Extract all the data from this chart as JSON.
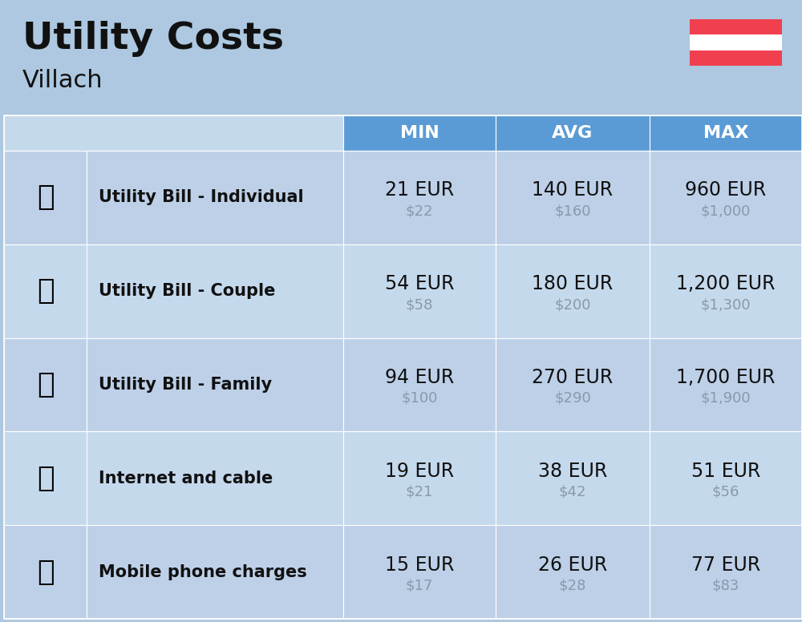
{
  "title": "Utility Costs",
  "subtitle": "Villach",
  "background_color": "#adc8e0",
  "header_bg_color": "#5b9bd5",
  "header_text_color": "#ffffff",
  "row_bg_color_1": "#c5d9ed",
  "row_bg_color_2": "#bdd0e8",
  "col_headers": [
    "MIN",
    "AVG",
    "MAX"
  ],
  "rows": [
    {
      "label": "Utility Bill - Individual",
      "min_eur": "21 EUR",
      "min_usd": "$22",
      "avg_eur": "140 EUR",
      "avg_usd": "$160",
      "max_eur": "960 EUR",
      "max_usd": "$1,000"
    },
    {
      "label": "Utility Bill - Couple",
      "min_eur": "54 EUR",
      "min_usd": "$58",
      "avg_eur": "180 EUR",
      "avg_usd": "$200",
      "max_eur": "1,200 EUR",
      "max_usd": "$1,300"
    },
    {
      "label": "Utility Bill - Family",
      "min_eur": "94 EUR",
      "min_usd": "$100",
      "avg_eur": "270 EUR",
      "avg_usd": "$290",
      "max_eur": "1,700 EUR",
      "max_usd": "$1,900"
    },
    {
      "label": "Internet and cable",
      "min_eur": "19 EUR",
      "min_usd": "$21",
      "avg_eur": "38 EUR",
      "avg_usd": "$42",
      "max_eur": "51 EUR",
      "max_usd": "$56"
    },
    {
      "label": "Mobile phone charges",
      "min_eur": "15 EUR",
      "min_usd": "$17",
      "avg_eur": "26 EUR",
      "avg_usd": "$28",
      "max_eur": "77 EUR",
      "max_usd": "$83"
    }
  ],
  "flag_colors": [
    "#f04050",
    "#ffffff",
    "#f04050"
  ],
  "title_fontsize": 34,
  "subtitle_fontsize": 22,
  "header_fontsize": 16,
  "label_fontsize": 15,
  "value_fontsize": 17,
  "usd_fontsize": 13,
  "usd_color": "#8899aa",
  "text_color": "#111111",
  "label_color": "#111111"
}
